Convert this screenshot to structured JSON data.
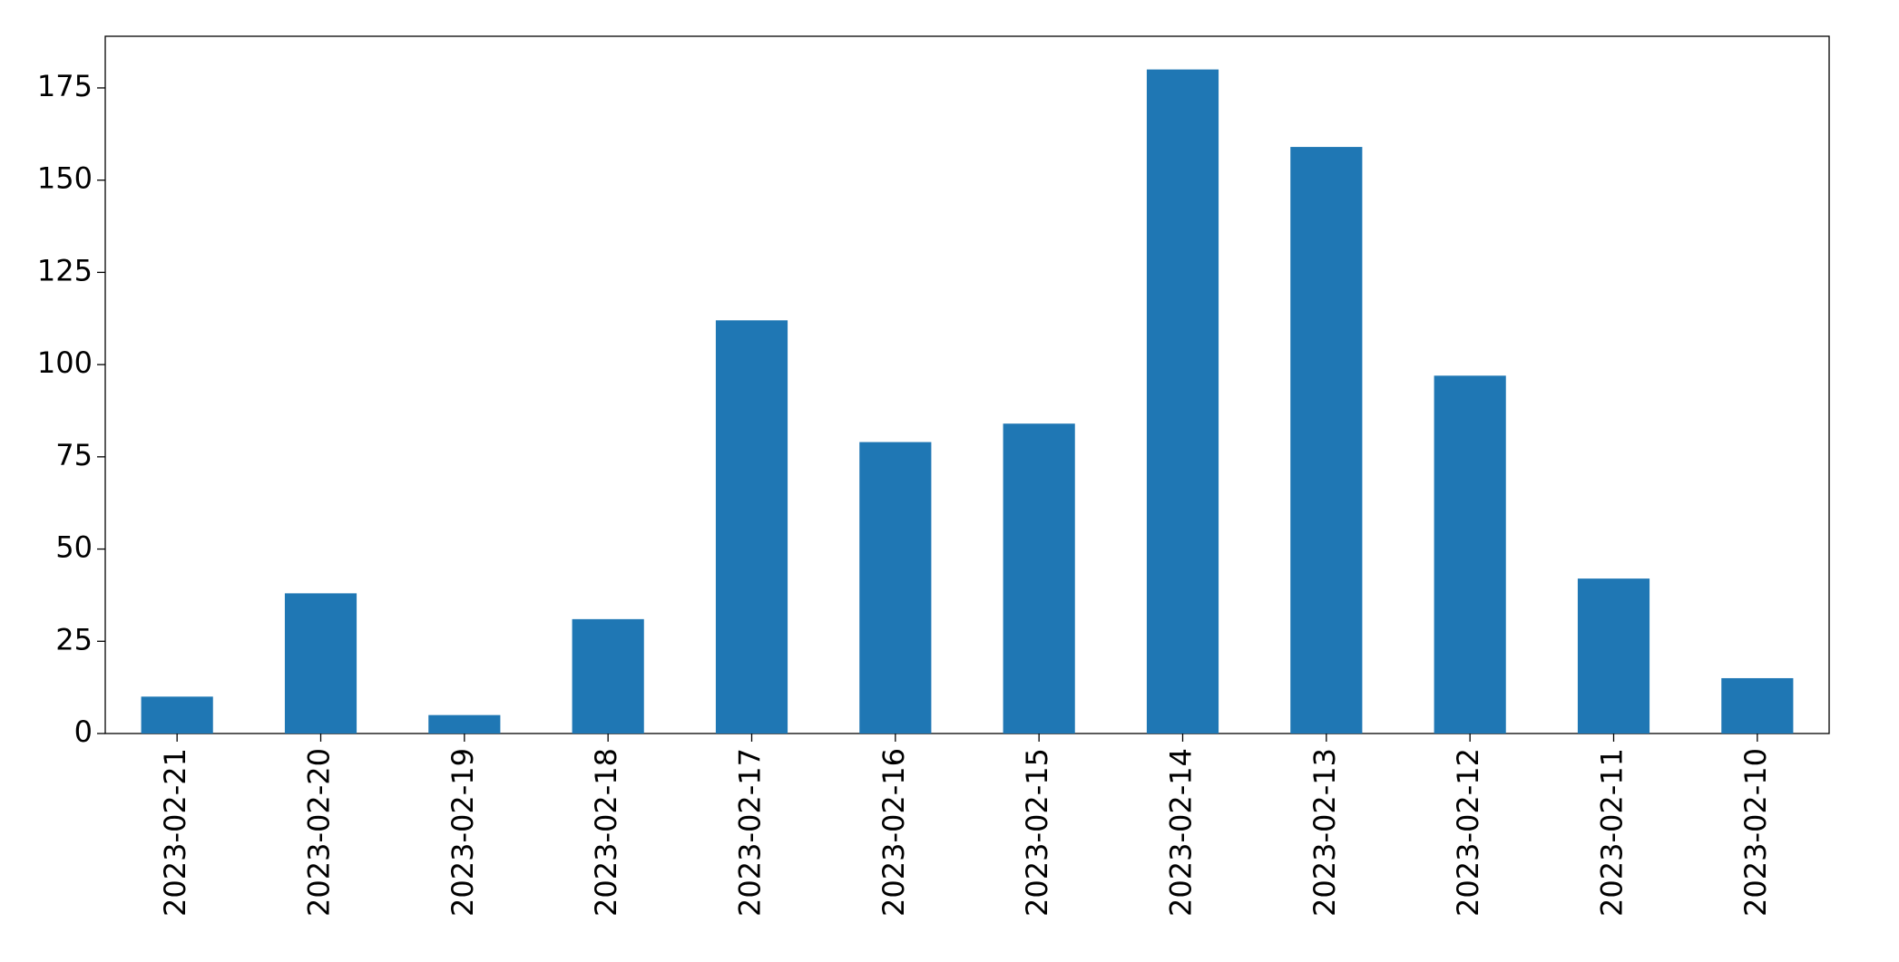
{
  "chart_data": {
    "type": "bar",
    "categories": [
      "2023-02-21",
      "2023-02-20",
      "2023-02-19",
      "2023-02-18",
      "2023-02-17",
      "2023-02-16",
      "2023-02-15",
      "2023-02-14",
      "2023-02-13",
      "2023-02-12",
      "2023-02-11",
      "2023-02-10"
    ],
    "values": [
      10,
      38,
      5,
      31,
      112,
      79,
      84,
      180,
      159,
      97,
      42,
      15
    ],
    "color": "#1f77b4",
    "ylim": [
      0,
      189
    ],
    "yticks": [
      0,
      25,
      50,
      75,
      100,
      125,
      150,
      175
    ],
    "grid": false
  }
}
